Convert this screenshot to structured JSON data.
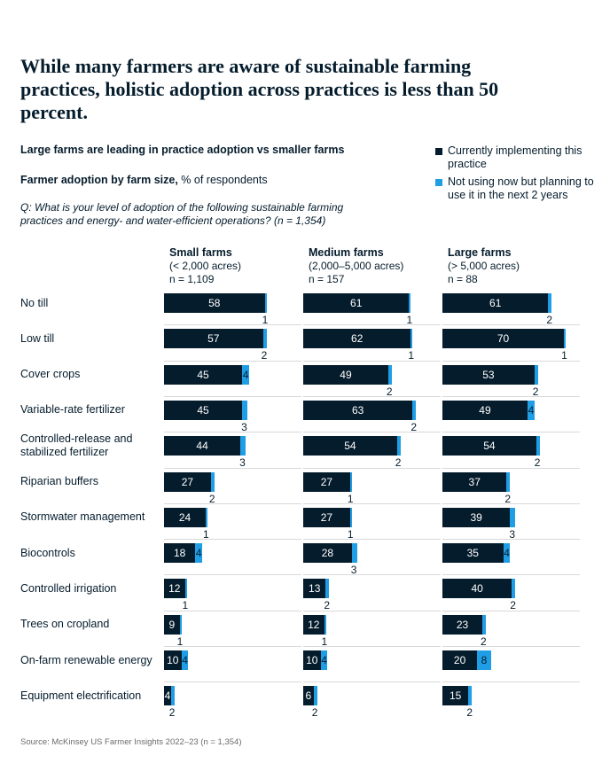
{
  "title": "While many farmers are aware of sustainable farming practices, holistic adoption across practices is less than 50 percent.",
  "subtitle": "Large farms are leading in practice adoption vs smaller farms",
  "measure_bold": "Farmer adoption by farm size,",
  "measure_rest": " % of respondents",
  "question": "Q: What is your level of adoption of the following sustainable farming practices and energy- and water-efficient operations? (n = 1,354)",
  "legend": [
    {
      "label": "Currently implementing this practice",
      "color": "#051c2c"
    },
    {
      "label": "Not using now but planning to use it in the next 2 years",
      "color": "#1f9ee6"
    }
  ],
  "source": "Source: McKinsey US Farmer Insights 2022–23 (n = 1,354)",
  "chart_data": {
    "type": "bar",
    "stacked": true,
    "orientation": "horizontal",
    "xlim": [
      0,
      72
    ],
    "categories": [
      "No till",
      "Low till",
      "Cover crops",
      "Variable-rate fertilizer",
      "Controlled-release and stabilized fertilizer",
      "Riparian buffers",
      "Stormwater management",
      "Biocontrols",
      "Controlled irrigation",
      "Trees on cropland",
      "On-farm renewable energy",
      "Equipment electrification"
    ],
    "panels": [
      {
        "name": "Small farms",
        "sub": "(< 2,000 acres)",
        "n": "n = 1,109",
        "series": [
          {
            "name": "Currently implementing this practice",
            "values": [
              58,
              57,
              45,
              45,
              44,
              27,
              24,
              18,
              12,
              9,
              10,
              4
            ]
          },
          {
            "name": "Not using now but planning to use it in the next 2 years",
            "values": [
              1,
              2,
              4,
              3,
              3,
              2,
              1,
              4,
              1,
              1,
              4,
              2
            ]
          }
        ]
      },
      {
        "name": "Medium farms",
        "sub": "(2,000–5,000 acres)",
        "n": "n = 157",
        "series": [
          {
            "name": "Currently implementing this practice",
            "values": [
              61,
              62,
              49,
              63,
              54,
              27,
              27,
              28,
              13,
              12,
              10,
              6
            ]
          },
          {
            "name": "Not using now but planning to use it in the next 2 years",
            "values": [
              1,
              1,
              2,
              2,
              2,
              1,
              1,
              3,
              2,
              1,
              4,
              2
            ]
          }
        ]
      },
      {
        "name": "Large farms",
        "sub": "(> 5,000 acres)",
        "n": "n = 88",
        "series": [
          {
            "name": "Currently implementing this practice",
            "values": [
              61,
              70,
              53,
              49,
              54,
              37,
              39,
              35,
              40,
              23,
              20,
              15
            ]
          },
          {
            "name": "Not using now but planning to use it in the next 2 years",
            "values": [
              2,
              1,
              2,
              4,
              2,
              2,
              3,
              4,
              2,
              2,
              8,
              2
            ]
          }
        ]
      }
    ]
  }
}
